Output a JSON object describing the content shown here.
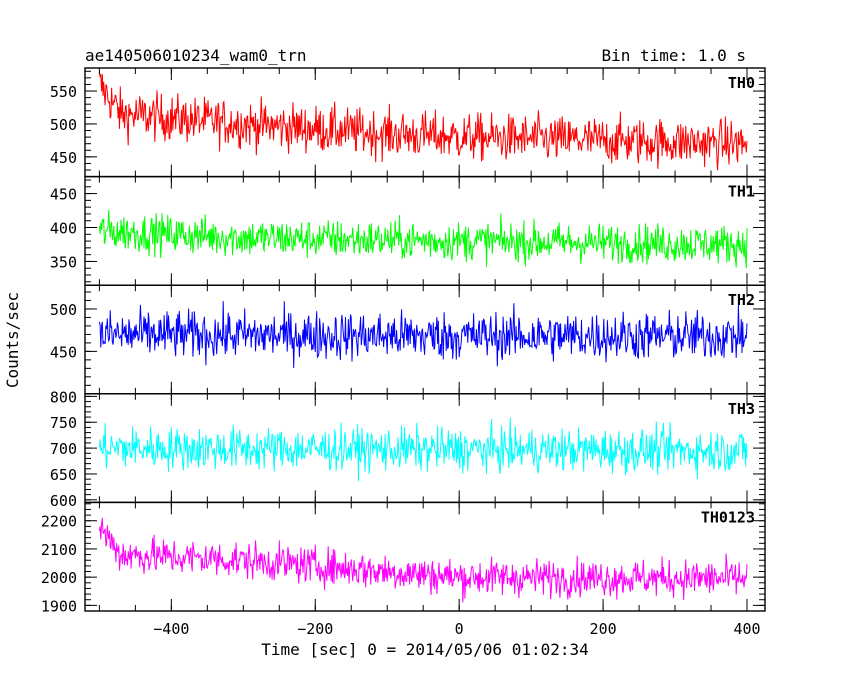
{
  "chart_data": {
    "type": "line",
    "title": "ae140506010234_wam0_trn",
    "bin_label": "Bin time: 1.0 s",
    "xlabel": "Time [sec] 0 = 2014/05/06 01:02:34",
    "ylabel": "Counts/sec",
    "xlim": [
      -520,
      425
    ],
    "x_ticks": [
      -400,
      -200,
      0,
      200,
      400
    ],
    "x_tick_labels": [
      "−400",
      "−200",
      "0",
      "200",
      "400"
    ],
    "x_minor_step": 50,
    "x_range": [
      -500,
      400
    ],
    "grid": false,
    "panels": [
      {
        "name": "TH0",
        "color": "#ff0000",
        "ylim": [
          420,
          585
        ],
        "y_ticks": [
          450,
          500,
          550
        ],
        "y_minor_step": 10,
        "model": {
          "start": 560,
          "trend": [
            [
              -500,
              560
            ],
            [
              -470,
              515
            ],
            [
              -300,
              500
            ],
            [
              -100,
              485
            ],
            [
              0,
              480
            ],
            [
              400,
              470
            ]
          ],
          "noise": 30
        }
      },
      {
        "name": "TH1",
        "color": "#00ff00",
        "ylim": [
          315,
          475
        ],
        "y_ticks": [
          350,
          400,
          450
        ],
        "y_minor_step": 10,
        "model": {
          "start": 395,
          "trend": [
            [
              -500,
              395
            ],
            [
              -300,
              385
            ],
            [
              0,
              380
            ],
            [
              400,
              375
            ]
          ],
          "noise": 24
        }
      },
      {
        "name": "TH2",
        "color": "#0000ff",
        "ylim": [
          400,
          528
        ],
        "y_ticks": [
          450,
          500
        ],
        "y_minor_step": 10,
        "model": {
          "start": 470,
          "trend": [
            [
              -500,
              470
            ],
            [
              0,
              468
            ],
            [
              400,
              468
            ]
          ],
          "noise": 24
        }
      },
      {
        "name": "TH3",
        "color": "#00ffff",
        "ylim": [
          595,
          805
        ],
        "y_ticks": [
          600,
          650,
          700,
          750,
          800
        ],
        "y_minor_step": 10,
        "model": {
          "start": 700,
          "trend": [
            [
              -500,
              700
            ],
            [
              400,
              695
            ]
          ],
          "noise": 35
        }
      },
      {
        "name": "TH0123",
        "color": "#ff00ff",
        "ylim": [
          1880,
          2265
        ],
        "y_ticks": [
          1900,
          2000,
          2100,
          2200
        ],
        "y_minor_step": 20,
        "model": {
          "start": 2180,
          "trend": [
            [
              -500,
              2180
            ],
            [
              -470,
              2080
            ],
            [
              -300,
              2060
            ],
            [
              -100,
              2020
            ],
            [
              0,
              2000
            ],
            [
              400,
              1995
            ]
          ],
          "noise": 55
        }
      }
    ]
  }
}
